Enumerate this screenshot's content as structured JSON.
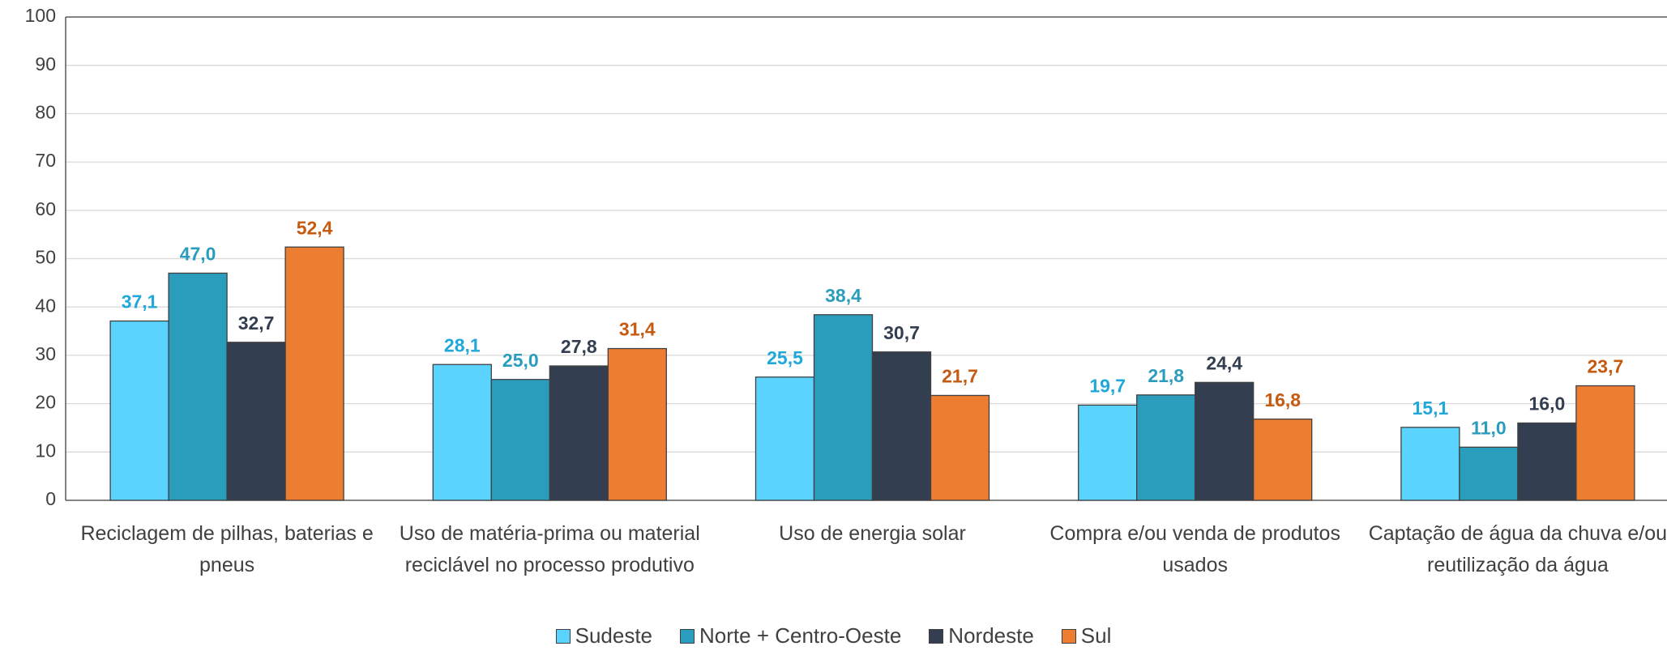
{
  "chart_data": {
    "type": "bar",
    "categories": [
      "Reciclagem de pilhas, baterias e pneus",
      "Uso de matéria-prima ou material reciclável no processo produtivo",
      "Uso de energia solar",
      "Compra e/ou venda de produtos usados",
      "Captação de água da chuva e/ou reutilização da água"
    ],
    "series": [
      {
        "name": "Sudeste",
        "color": "#5bd3ff",
        "label_color": "#1fa8d8",
        "values": [
          37.1,
          28.1,
          25.5,
          19.7,
          15.1
        ],
        "value_labels": [
          "37,1",
          "28,1",
          "25,5",
          "19,7",
          "15,1"
        ]
      },
      {
        "name": "Norte + Centro-Oeste",
        "color": "#2a9dbd",
        "label_color": "#2a9dbd",
        "values": [
          47.0,
          25.0,
          38.4,
          21.8,
          11.0
        ],
        "value_labels": [
          "47,0",
          "25,0",
          "38,4",
          "21,8",
          "11,0"
        ]
      },
      {
        "name": "Nordeste",
        "color": "#333f50",
        "label_color": "#333f50",
        "values": [
          32.7,
          27.8,
          30.7,
          24.4,
          16.0
        ],
        "value_labels": [
          "32,7",
          "27,8",
          "30,7",
          "24,4",
          "16,0"
        ]
      },
      {
        "name": "Sul",
        "color": "#ed7d31",
        "label_color": "#c55a11",
        "values": [
          52.4,
          31.4,
          21.7,
          16.8,
          23.7
        ],
        "value_labels": [
          "52,4",
          "31,4",
          "21,7",
          "16,8",
          "23,7"
        ]
      }
    ],
    "ylim": [
      0,
      100
    ],
    "yticks": [
      0,
      10,
      20,
      30,
      40,
      50,
      60,
      70,
      80,
      90,
      100
    ],
    "grid": true,
    "legend": "bottom"
  }
}
